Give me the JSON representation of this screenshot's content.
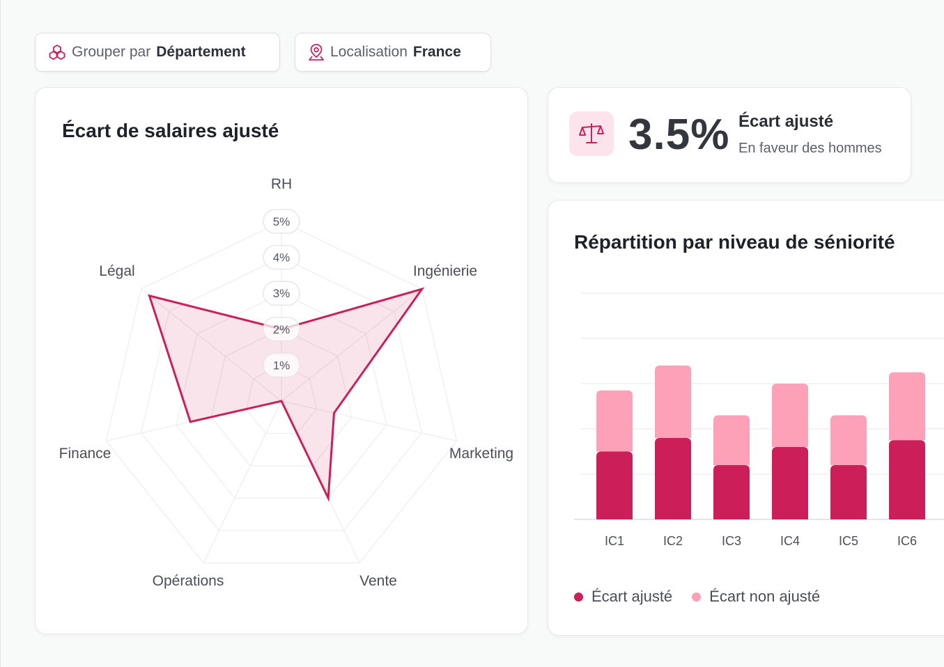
{
  "filters": {
    "group": {
      "label": "Grouper par",
      "value": "Département"
    },
    "location": {
      "label": "Localisation",
      "value": "France"
    }
  },
  "radar_card": {
    "title": "Écart de salaires ajusté"
  },
  "stat_card": {
    "value": "3.5%",
    "label": "Écart ajusté",
    "sub": "En faveur des hommes"
  },
  "bar_card": {
    "title": "Répartition par niveau de séniorité"
  },
  "colors": {
    "accent": "#cc1f5a",
    "accent_light": "#fda1b8",
    "fill": "#f6dde6"
  },
  "chart_data": [
    {
      "type": "radar",
      "title": "Écart de salaires ajusté",
      "categories": [
        "RH",
        "Ingénierie",
        "Marketing",
        "Vente",
        "Opérations",
        "Finance",
        "Légal"
      ],
      "values": [
        2.0,
        5.0,
        1.5,
        3.0,
        0.0,
        2.6,
        4.7
      ],
      "ticks": [
        "1%",
        "2%",
        "3%",
        "4%",
        "5%"
      ],
      "rlim": [
        0,
        5
      ]
    },
    {
      "type": "bar",
      "stacked": true,
      "title": "Répartition par niveau de séniorité",
      "categories": [
        "IC1",
        "IC2",
        "IC3",
        "IC4",
        "IC5",
        "IC6"
      ],
      "series": [
        {
          "name": "Écart ajusté",
          "values": [
            1.5,
            1.8,
            1.2,
            1.6,
            1.2,
            1.75
          ],
          "color": "#cc1f5a"
        },
        {
          "name": "Écart non ajusté",
          "values": [
            1.35,
            1.6,
            1.1,
            1.4,
            1.1,
            1.5
          ],
          "color": "#fda1b8"
        }
      ],
      "ylim": [
        0,
        5
      ],
      "grid": true,
      "legend": "bottom-left"
    }
  ]
}
